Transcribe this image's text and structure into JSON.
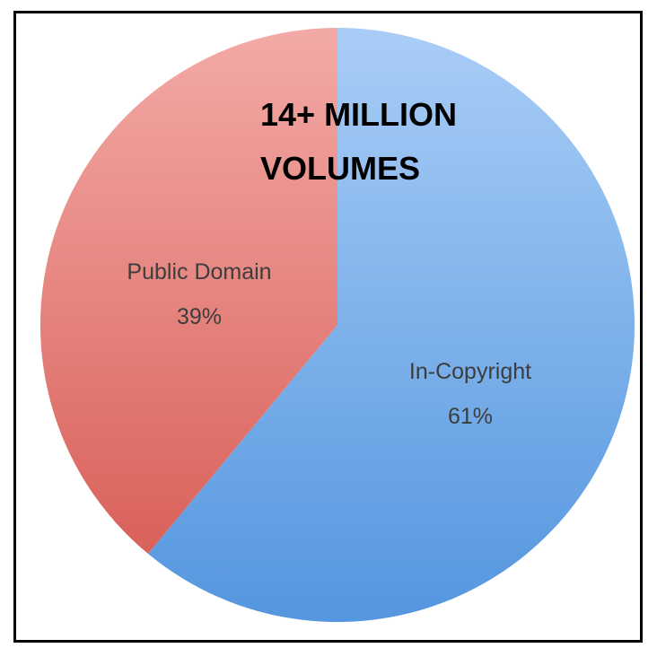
{
  "chart_data": {
    "type": "pie",
    "title_lines": [
      "14+ MILLION",
      "VOLUMES"
    ],
    "slices": [
      {
        "label": "In-Copyright",
        "value": 61,
        "value_label": "61%",
        "color": "#6ea3e3"
      },
      {
        "label": "Public Domain",
        "value": 39,
        "value_label": "39%",
        "color": "#e07a72"
      }
    ]
  }
}
